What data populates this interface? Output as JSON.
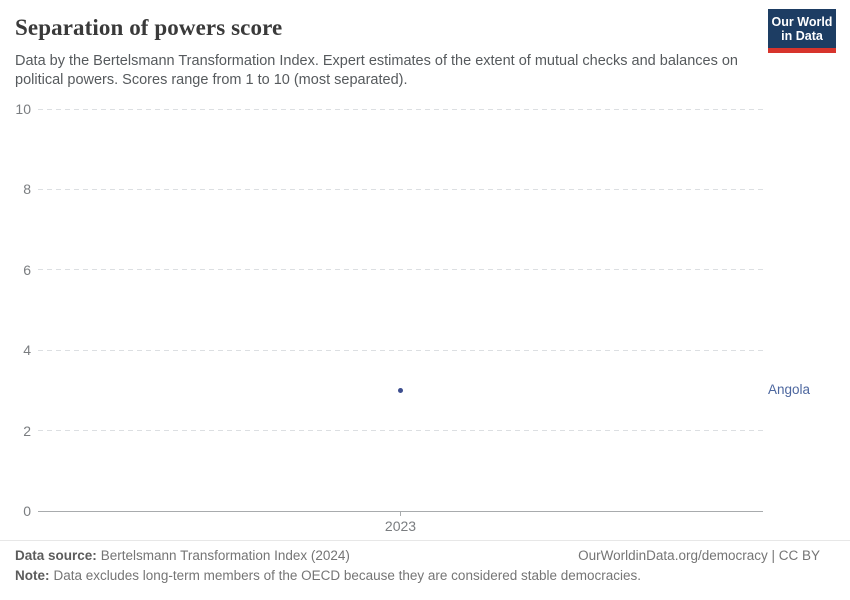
{
  "header": {
    "title": "Separation of powers score",
    "subtitle": "Data by the Bertelsmann Transformation Index. Expert estimates of the extent of mutual checks and balances on political powers. Scores range from 1 to 10 (most separated)."
  },
  "logo": {
    "line1": "Our World",
    "line2": "in Data"
  },
  "chart_data": {
    "type": "scatter",
    "title": "Separation of powers score",
    "x": [
      2023
    ],
    "series": [
      {
        "name": "Angola",
        "values": [
          3
        ],
        "color": "#3d4e8f"
      }
    ],
    "xticks": [
      "2023"
    ],
    "yticks": [
      0,
      2,
      4,
      6,
      8,
      10
    ],
    "ylim": [
      0,
      10
    ],
    "xlabel": "",
    "ylabel": "",
    "grid": "horizontal-dashed",
    "legend_position": "entity-label-right"
  },
  "footer": {
    "source_label": "Data source:",
    "source_text": "Bertelsmann Transformation Index (2024)",
    "note_label": "Note:",
    "note_text": "Data excludes long-term members of the OECD because they are considered stable democracies.",
    "attribution": "OurWorldinData.org/democracy | CC BY"
  },
  "colors": {
    "accent_navy": "#1d3d63",
    "accent_red": "#d7342c",
    "point": "#3d4e8f",
    "entity_label": "#4d679f",
    "gridline": "#dcdfe2",
    "axis": "#a8abad",
    "tick_text": "#7a7d80"
  }
}
